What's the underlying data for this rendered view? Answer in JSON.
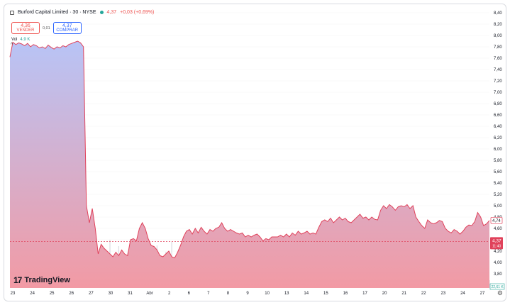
{
  "header": {
    "symbol": "Burford Capital Limited · 30 · NYSE",
    "price": "4,37",
    "change": "+0,03 (+0,69%)"
  },
  "trade": {
    "sell_price": "4,36",
    "sell_label": "VENDER",
    "spread": "0,01",
    "buy_price": "4,37",
    "buy_label": "COMPRAR"
  },
  "volume": {
    "label": "Vol",
    "value": "4,9 K"
  },
  "logo": {
    "name": "TradingView"
  },
  "right_labels": {
    "level": "4,74",
    "price": "4,37",
    "countdown": "11:40",
    "volume": "22,61 K"
  },
  "colors": {
    "line": "#e0425b",
    "grad_top": "#b8c4f6",
    "grad_bottom": "#f29aa4",
    "accent_red": "#ef5350",
    "accent_green": "#26a69a"
  },
  "chart_data": {
    "type": "area",
    "ylim": [
      3.6,
      8.4
    ],
    "yticks": [
      "8,40",
      "8,20",
      "8,00",
      "7,80",
      "7,60",
      "7,40",
      "7,20",
      "7,00",
      "6,80",
      "6,60",
      "6,40",
      "6,20",
      "6,00",
      "5,80",
      "5,60",
      "5,40",
      "5,20",
      "5,00",
      "4,80",
      "4,60",
      "4,40",
      "4,20",
      "4,00",
      "3,80"
    ],
    "ytick_values": [
      8.4,
      8.2,
      8.0,
      7.8,
      7.6,
      7.4,
      7.2,
      7.0,
      6.8,
      6.6,
      6.4,
      6.2,
      6.0,
      5.8,
      5.6,
      5.4,
      5.2,
      5.0,
      4.8,
      4.6,
      4.4,
      4.2,
      4.0,
      3.8
    ],
    "xlabels": [
      "23",
      "24",
      "25",
      "26",
      "27",
      "30",
      "31",
      "Abr",
      "2",
      "6",
      "7",
      "8",
      "9",
      "10",
      "13",
      "14",
      "15",
      "16",
      "17",
      "20",
      "21",
      "22",
      "23",
      "24",
      "27"
    ],
    "series": [
      {
        "values": [
          7.62,
          7.88,
          7.84,
          7.87,
          7.85,
          7.82,
          7.86,
          7.8,
          7.84,
          7.82,
          7.78,
          7.8,
          7.77,
          7.83,
          7.79,
          7.76,
          7.8,
          7.78,
          7.82,
          7.8,
          7.84,
          7.86,
          7.88,
          7.9,
          7.87,
          7.8,
          5.0,
          4.7,
          4.95,
          4.6,
          4.15,
          4.32,
          4.25,
          4.2,
          4.15,
          4.1,
          4.18,
          4.12,
          4.22,
          4.15,
          4.12,
          4.4,
          4.42,
          4.38,
          4.6,
          4.7,
          4.6,
          4.42,
          4.3,
          4.28,
          4.22,
          4.12,
          4.1,
          4.15,
          4.2,
          4.1,
          4.08,
          4.18,
          4.3,
          4.45,
          4.55,
          4.58,
          4.5,
          4.6,
          4.52,
          4.62,
          4.55,
          4.5,
          4.58,
          4.55,
          4.6,
          4.62,
          4.7,
          4.6,
          4.55,
          4.58,
          4.55,
          4.52,
          4.5,
          4.52,
          4.45,
          4.48,
          4.45,
          4.48,
          4.5,
          4.45,
          4.38,
          4.42,
          4.4,
          4.45,
          4.45,
          4.45,
          4.48,
          4.45,
          4.5,
          4.45,
          4.52,
          4.48,
          4.55,
          4.5,
          4.52,
          4.55,
          4.5,
          4.52,
          4.5,
          4.62,
          4.72,
          4.75,
          4.72,
          4.78,
          4.7,
          4.75,
          4.8,
          4.75,
          4.78,
          4.72,
          4.7,
          4.75,
          4.8,
          4.85,
          4.78,
          4.8,
          4.75,
          4.8,
          4.76,
          4.75,
          4.92,
          5.0,
          4.95,
          5.02,
          4.98,
          4.92,
          4.98,
          5.0,
          4.98,
          5.02,
          4.95,
          5.0,
          4.8,
          4.72,
          4.65,
          4.6,
          4.75,
          4.7,
          4.68,
          4.7,
          4.74,
          4.72,
          4.6,
          4.55,
          4.52,
          4.58,
          4.55,
          4.5,
          4.55,
          4.62,
          4.66,
          4.65,
          4.72,
          4.88,
          4.8,
          4.65,
          4.68,
          4.74
        ]
      }
    ]
  }
}
